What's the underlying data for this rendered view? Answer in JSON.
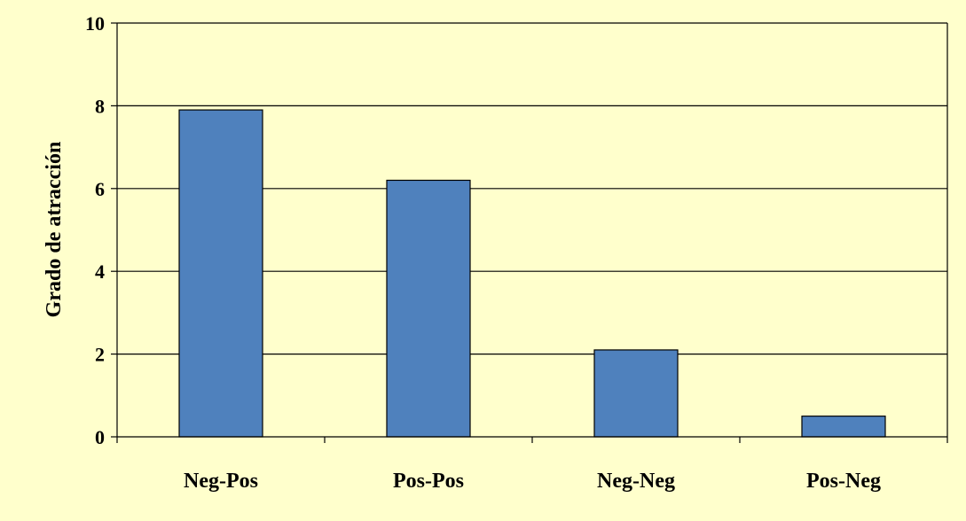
{
  "colors": {
    "background": "#FFFFCC",
    "bar_fill": "#4F81BD",
    "bar_stroke": "#000000",
    "gridline": "#000000"
  },
  "chart_data": {
    "type": "bar",
    "categories": [
      "Neg-Pos",
      "Pos-Pos",
      "Neg-Neg",
      "Pos-Neg"
    ],
    "values": [
      7.9,
      6.2,
      2.1,
      0.5
    ],
    "title": "",
    "xlabel": "",
    "ylabel": "Grado de atracción",
    "ylim": [
      0,
      10
    ],
    "yticks": [
      "0",
      "2",
      "4",
      "6",
      "8",
      "10"
    ],
    "grid": true,
    "legend": "none"
  }
}
